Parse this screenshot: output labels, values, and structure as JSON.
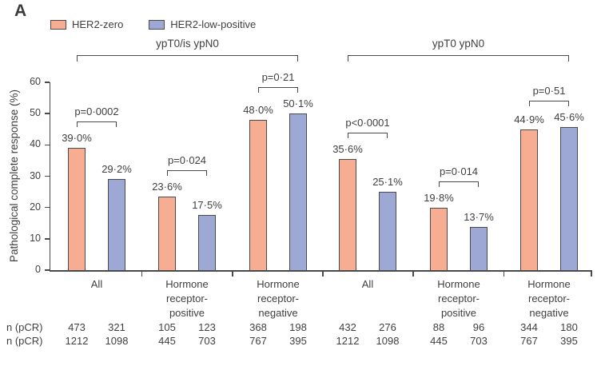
{
  "panel_label": "A",
  "legend": {
    "items": [
      {
        "label": "HER2-zero",
        "color": "#F7AD92"
      },
      {
        "label": "HER2-low-positive",
        "color": "#9DA9D4"
      }
    ]
  },
  "colors": {
    "axis": "#4a4a4a",
    "text": "#3f3f3f",
    "bar_border": "#4a4a4a",
    "her2_zero_fill": "#F7AD92",
    "her2_low_positive_fill": "#9DA9D4"
  },
  "chart_data": {
    "type": "bar",
    "title": "",
    "xlabel": "",
    "ylabel": "Pathological complete response (%)",
    "ylim": [
      0,
      60
    ],
    "yticks": [
      0,
      10,
      20,
      30,
      40,
      50,
      60
    ],
    "grid": false,
    "legend_position": "top-left",
    "categories": [
      "All",
      "Hormone receptor-positive",
      "Hormone receptor-negative",
      "All",
      "Hormone receptor-positive",
      "Hormone receptor-negative"
    ],
    "category_display": [
      [
        "All"
      ],
      [
        "Hormone",
        "receptor-",
        "positive"
      ],
      [
        "Hormone",
        "receptor-",
        "negative"
      ],
      [
        "All"
      ],
      [
        "Hormone",
        "receptor-",
        "positive"
      ],
      [
        "Hormone",
        "receptor-",
        "negative"
      ]
    ],
    "series": [
      {
        "name": "HER2-zero",
        "color": "#F7AD92",
        "values": [
          39.0,
          23.6,
          48.0,
          35.6,
          19.8,
          44.9
        ],
        "value_labels": [
          "39·0%",
          "23·6%",
          "48·0%",
          "35·6%",
          "19·8%",
          "44·9%"
        ]
      },
      {
        "name": "HER2-low-positive",
        "color": "#9DA9D4",
        "values": [
          29.2,
          17.5,
          50.1,
          25.1,
          13.7,
          45.6
        ],
        "value_labels": [
          "29·2%",
          "17·5%",
          "50·1%",
          "25·1%",
          "13·7%",
          "45·6%"
        ]
      }
    ],
    "p_values": [
      "p=0·0002",
      "p=0·024",
      "p=0·21",
      "p<0·0001",
      "p=0·014",
      "p=0·51"
    ],
    "section_brackets": [
      {
        "label": "ypT0/is ypN0",
        "from_group": 0,
        "to_group": 2
      },
      {
        "label": "ypT0 ypN0",
        "from_group": 3,
        "to_group": 5
      }
    ],
    "counts": {
      "rows": [
        {
          "label": "n (pCR)",
          "values": [
            473,
            321,
            105,
            123,
            368,
            198,
            432,
            276,
            88,
            96,
            344,
            180
          ]
        },
        {
          "label": "n (pCR)",
          "values": [
            1212,
            1098,
            445,
            703,
            767,
            395,
            1212,
            1098,
            445,
            703,
            767,
            395
          ]
        }
      ]
    }
  }
}
